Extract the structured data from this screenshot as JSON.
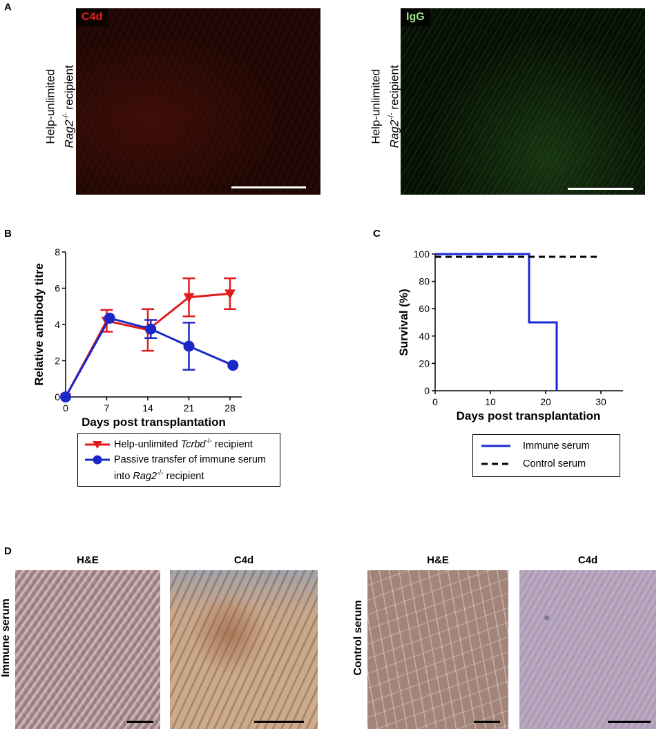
{
  "panels": {
    "A": {
      "letter": "A",
      "images": [
        {
          "stain": "C4d",
          "stain_color": "#e8201a",
          "ylabel_line1": "Help-unlimited",
          "ylabel_gene": "Rag2",
          "ylabel_sup": "-/-",
          "ylabel_rest": " recipient"
        },
        {
          "stain": "IgG",
          "stain_color": "#9fe08a",
          "ylabel_line1": "Help-unlimited",
          "ylabel_gene": "Rag2",
          "ylabel_sup": "-/-",
          "ylabel_rest": " recipient"
        }
      ]
    },
    "B": {
      "letter": "B"
    },
    "C": {
      "letter": "C"
    },
    "D": {
      "letter": "D",
      "groups": [
        {
          "label": "Immune  serum",
          "titles": [
            "H&E",
            "C4d"
          ]
        },
        {
          "label": "Control serum",
          "titles": [
            "H&E",
            "C4d"
          ]
        }
      ]
    }
  },
  "chart_data": [
    {
      "type": "line",
      "panel": "B",
      "xlabel": "Days post transplantation",
      "ylabel": "Relative  antibody  titre",
      "xticks": [
        0,
        7,
        14,
        21,
        28
      ],
      "yticks": [
        0,
        2,
        4,
        6,
        8
      ],
      "xlim": [
        0,
        30
      ],
      "ylim": [
        0,
        8
      ],
      "series": [
        {
          "name_pre": "Help-unlimited ",
          "name_gene": "Tcrbd",
          "name_sup": "-/-",
          "name_post": " recipient",
          "color": "#e01b1b",
          "marker": "triangle-down",
          "points": [
            {
              "x": 0,
              "y": 0,
              "err": 0
            },
            {
              "x": 7,
              "y": 4.2,
              "err": 0.6
            },
            {
              "x": 14,
              "y": 3.7,
              "err": 1.15
            },
            {
              "x": 21,
              "y": 5.5,
              "err": 1.05
            },
            {
              "x": 28,
              "y": 5.7,
              "err": 0.85
            }
          ]
        },
        {
          "name_pre": "Passive transfer of immune serum",
          "name_line2_pre": "into ",
          "name_gene": "Rag2",
          "name_sup": "-/-",
          "name_post": " recipient",
          "color": "#1b28c8",
          "marker": "circle",
          "points": [
            {
              "x": 0,
              "y": 0,
              "err": 0
            },
            {
              "x": 7.5,
              "y": 4.35,
              "err": 0
            },
            {
              "x": 14.5,
              "y": 3.75,
              "err": 0.5
            },
            {
              "x": 21,
              "y": 2.8,
              "err": 1.3
            },
            {
              "x": 28.5,
              "y": 1.75,
              "err": 0
            }
          ]
        }
      ]
    },
    {
      "type": "line",
      "panel": "C",
      "xlabel": "Days post transplantation",
      "ylabel": "Survival (%)",
      "xticks": [
        0,
        10,
        20,
        30
      ],
      "yticks": [
        0,
        20,
        40,
        60,
        80,
        100
      ],
      "xlim": [
        0,
        34
      ],
      "ylim": [
        0,
        100
      ],
      "series": [
        {
          "name": "Immune serum",
          "color": "#1b28d8",
          "style": "solid",
          "points": [
            {
              "x": 0,
              "y": 100
            },
            {
              "x": 17,
              "y": 100
            },
            {
              "x": 17,
              "y": 50
            },
            {
              "x": 22,
              "y": 50
            },
            {
              "x": 22,
              "y": 0
            }
          ]
        },
        {
          "name": "Control serum",
          "color": "#000000",
          "style": "dashed",
          "points": [
            {
              "x": 0,
              "y": 98
            },
            {
              "x": 30,
              "y": 98
            }
          ]
        }
      ]
    }
  ]
}
